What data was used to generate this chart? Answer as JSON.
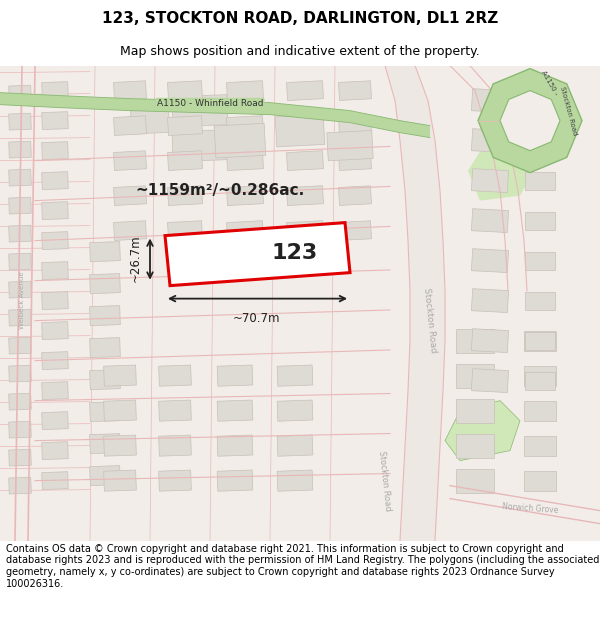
{
  "title": "123, STOCKTON ROAD, DARLINGTON, DL1 2RZ",
  "subtitle": "Map shows position and indicative extent of the property.",
  "footer": "Contains OS data © Crown copyright and database right 2021. This information is subject to Crown copyright and database rights 2023 and is reproduced with the permission of HM Land Registry. The polygons (including the associated geometry, namely x, y co-ordinates) are subject to Crown copyright and database rights 2023 Ordnance Survey 100026316.",
  "area_text": "~1159m²/~0.286ac.",
  "width_text": "~70.7m",
  "height_text": "~26.7m",
  "number_text": "123",
  "map_bg": "#f2ede8",
  "building_fill": "#dedad4",
  "building_edge": "#c8c0b8",
  "road_line": "#e8b8b8",
  "road_fill": "#ede8e3",
  "green_fill": "#b8d8a0",
  "green_edge": "#88b870",
  "green_light": "#d0e8b8",
  "property_fill": "#ffffff",
  "property_border": "#e00000",
  "title_fs": 11,
  "subtitle_fs": 9,
  "footer_fs": 7
}
